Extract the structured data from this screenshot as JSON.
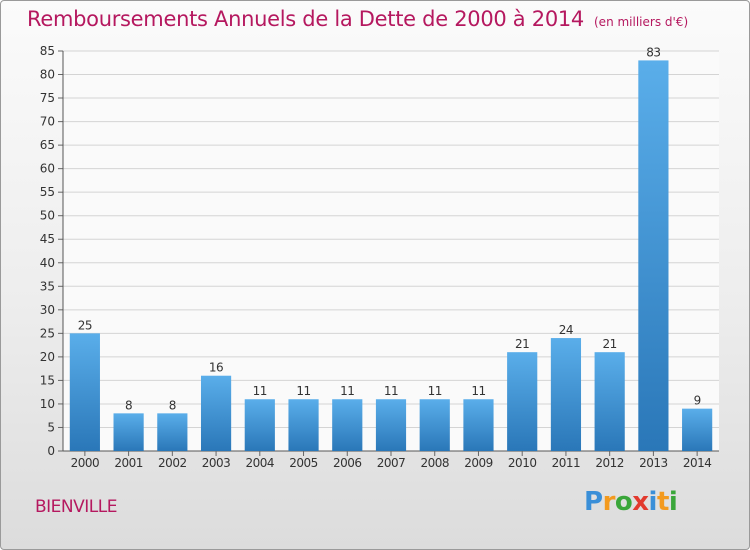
{
  "header": {
    "title": "Remboursements Annuels de la Dette de 2000 à 2014",
    "unit": "(en milliers d'€)"
  },
  "footer": {
    "location": "BIENVILLE"
  },
  "brand": {
    "letters": [
      {
        "ch": "P",
        "color": "#3a8fd8"
      },
      {
        "ch": "r",
        "color": "#f39a1e"
      },
      {
        "ch": "o",
        "color": "#3aa63a"
      },
      {
        "ch": "x",
        "color": "#e23a2e"
      },
      {
        "ch": "i",
        "color": "#3a8fd8"
      },
      {
        "ch": "t",
        "color": "#f39a1e"
      },
      {
        "ch": "i",
        "color": "#3aa63a"
      }
    ]
  },
  "colors": {
    "bar_light": "#5aaeea",
    "bar_dark": "#2a77b8",
    "title": "#b5185f",
    "grid": "#d4d4d4"
  },
  "chart_data": {
    "type": "bar",
    "title": "Remboursements Annuels de la Dette de 2000 à 2014",
    "ylim": [
      0,
      85
    ],
    "yticks": [
      0,
      5,
      10,
      15,
      20,
      25,
      30,
      35,
      40,
      45,
      50,
      55,
      60,
      65,
      70,
      75,
      80,
      85
    ],
    "grid": true,
    "categories": [
      "2000",
      "2001",
      "2002",
      "2003",
      "2004",
      "2005",
      "2006",
      "2007",
      "2008",
      "2009",
      "2010",
      "2011",
      "2012",
      "2013",
      "2014"
    ],
    "values": [
      25,
      8,
      8,
      16,
      11,
      11,
      11,
      11,
      11,
      11,
      21,
      24,
      21,
      83,
      9
    ]
  }
}
